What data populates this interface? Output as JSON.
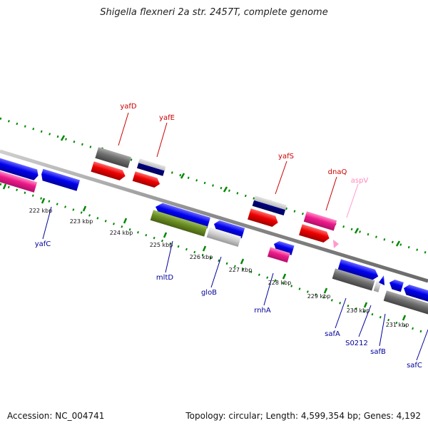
{
  "title": "Shigella flexneri 2a str. 2457T, complete genome",
  "footer": {
    "accession": "Accession: NC_004741",
    "topology": "Topology: circular; Length: 4,599,354 bp; Genes: 4,192"
  },
  "colors": {
    "forward_label": "#cc0000",
    "reverse_label": "#000099",
    "rna_label": "#ff88bb",
    "tick": "#008800",
    "backbone": "#888888"
  },
  "kbp_labels": [
    "222 kbp",
    "223 kbp",
    "224 kbp",
    "225 kbp",
    "226 kbp",
    "227 kbp",
    "228 kbp",
    "229 kbp",
    "230 kbp",
    "231 kbp"
  ],
  "genes_top": [
    {
      "name": "yafD",
      "color": "#cc0000"
    },
    {
      "name": "yafE",
      "color": "#cc0000"
    },
    {
      "name": "yafS",
      "color": "#cc0000"
    },
    {
      "name": "dnaQ",
      "color": "#cc0000"
    },
    {
      "name": "aspV",
      "color": "#ff88bb"
    }
  ],
  "genes_bottom": [
    {
      "name": "yafC",
      "color": "#000099"
    },
    {
      "name": "mltD",
      "color": "#000099"
    },
    {
      "name": "gloB",
      "color": "#000099"
    },
    {
      "name": "rnhA",
      "color": "#000099"
    },
    {
      "name": "safA",
      "color": "#000099"
    },
    {
      "name": "S0212",
      "color": "#000099"
    },
    {
      "name": "safB",
      "color": "#000099"
    },
    {
      "name": "safC",
      "color": "#000099"
    }
  ]
}
